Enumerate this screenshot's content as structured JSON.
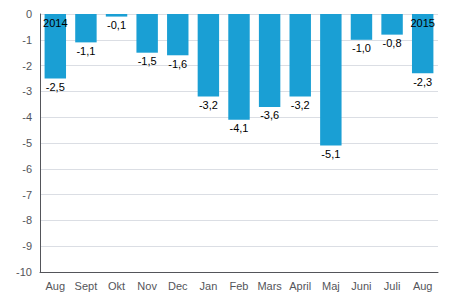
{
  "chart_data": {
    "type": "bar",
    "categories": [
      "Aug",
      "Sept",
      "Okt",
      "Nov",
      "Dec",
      "Jan",
      "Feb",
      "Mars",
      "April",
      "Maj",
      "Juni",
      "Juli",
      "Aug"
    ],
    "values": [
      -2.5,
      -1.1,
      -0.1,
      -1.5,
      -1.6,
      -3.2,
      -4.1,
      -3.6,
      -3.2,
      -5.1,
      -1.0,
      -0.8,
      -2.3
    ],
    "value_labels": [
      "-2,5",
      "-1,1",
      "-0,1",
      "-1,5",
      "-1,6",
      "-3,2",
      "-4,1",
      "-3,6",
      "-3,2",
      "-5,1",
      "-1,0",
      "-0,8",
      "-2,3"
    ],
    "data_labels": true,
    "color": "#1a9fd4",
    "ylim": [
      -10,
      0
    ],
    "yticks": [
      0,
      -1,
      -2,
      -3,
      -4,
      -5,
      -6,
      -7,
      -8,
      -9,
      -10
    ],
    "grid": true,
    "annotations": [
      {
        "text": "2014",
        "x": 0
      },
      {
        "text": "2015",
        "x": 12
      }
    ]
  }
}
